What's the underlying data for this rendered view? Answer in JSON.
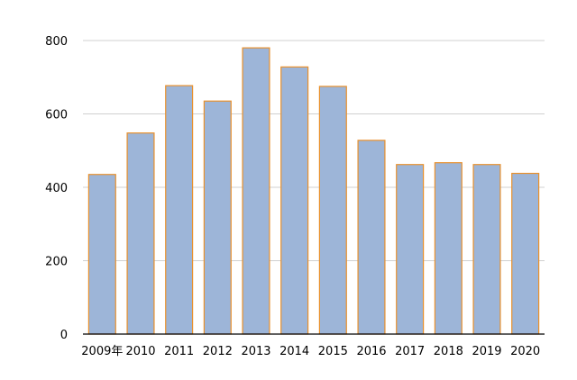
{
  "chart_data": {
    "type": "bar",
    "categories": [
      "2009年",
      "2010",
      "2011",
      "2012",
      "2013",
      "2014",
      "2015",
      "2016",
      "2017",
      "2018",
      "2019",
      "2020"
    ],
    "values": [
      435,
      548,
      677,
      635,
      780,
      728,
      675,
      528,
      462,
      467,
      462,
      438
    ],
    "ylim": [
      0,
      800
    ],
    "yticks": [
      "0",
      "200",
      "400",
      "600",
      "800"
    ],
    "grid": true,
    "bar_fill": "#9db5d8",
    "bar_stroke": "#e8902c",
    "grid_color": "#d0d0d0",
    "axis_color": "#000000"
  }
}
